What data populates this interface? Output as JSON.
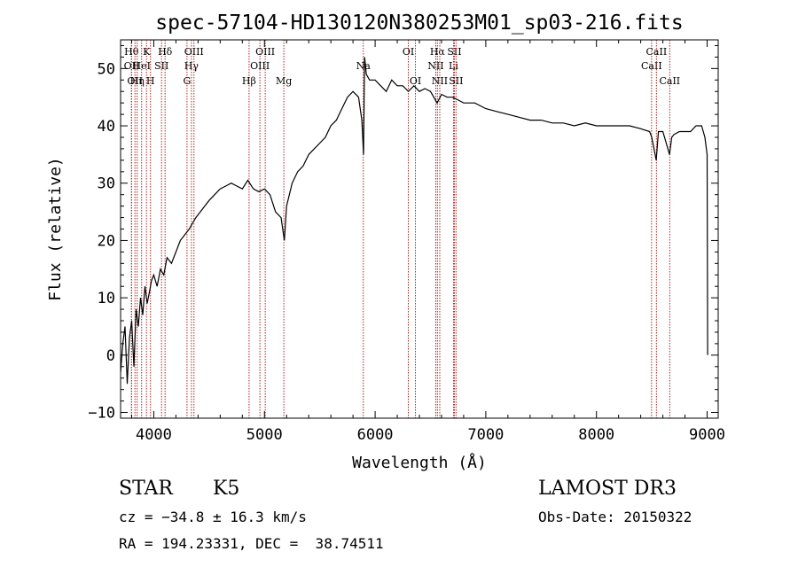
{
  "chart_data": {
    "type": "line",
    "title": "spec-57104-HD130120N380253M01_sp03-216.fits",
    "xlabel": "Wavelength (Å)",
    "ylabel": "Flux (relative)",
    "xlim": [
      3700,
      9100
    ],
    "ylim": [
      -11,
      55
    ],
    "xticks": [
      4000,
      5000,
      6000,
      7000,
      8000,
      9000
    ],
    "yticks": [
      -10,
      0,
      10,
      20,
      30,
      40,
      50
    ],
    "tick_labels_x": [
      "4000",
      "5000",
      "6000",
      "7000",
      "8000",
      "9000"
    ],
    "tick_labels_y": [
      "−10",
      "0",
      "10",
      "20",
      "30",
      "40",
      "50"
    ],
    "series": [
      {
        "name": "flux",
        "x": [
          3700,
          3720,
          3740,
          3760,
          3780,
          3800,
          3820,
          3840,
          3860,
          3880,
          3900,
          3920,
          3940,
          3960,
          3980,
          4000,
          4030,
          4060,
          4090,
          4120,
          4160,
          4200,
          4240,
          4280,
          4320,
          4350,
          4380,
          4420,
          4460,
          4500,
          4550,
          4600,
          4650,
          4700,
          4750,
          4800,
          4850,
          4900,
          4950,
          5000,
          5050,
          5100,
          5150,
          5180,
          5200,
          5250,
          5300,
          5350,
          5400,
          5450,
          5500,
          5550,
          5600,
          5650,
          5700,
          5750,
          5800,
          5850,
          5880,
          5895,
          5905,
          5920,
          5950,
          6000,
          6050,
          6100,
          6150,
          6200,
          6250,
          6300,
          6350,
          6400,
          6450,
          6500,
          6560,
          6600,
          6650,
          6700,
          6750,
          6800,
          6900,
          7000,
          7100,
          7200,
          7300,
          7400,
          7500,
          7600,
          7700,
          7800,
          7900,
          8000,
          8100,
          8200,
          8300,
          8400,
          8480,
          8500,
          8540,
          8560,
          8600,
          8660,
          8680,
          8700,
          8750,
          8800,
          8850,
          8900,
          8950,
          8980,
          9000,
          9005
        ],
        "y": [
          -3,
          2,
          5,
          -5,
          3,
          6,
          -2,
          8,
          5,
          10,
          7,
          12,
          9,
          11,
          13,
          14,
          12,
          15,
          14,
          17,
          16,
          18,
          20,
          21,
          22,
          23,
          24,
          25,
          26,
          27,
          28,
          29,
          29.5,
          30,
          29.5,
          29,
          30.5,
          29,
          28.5,
          29,
          28,
          25,
          24,
          20,
          26,
          30,
          32,
          33,
          35,
          36,
          37,
          38,
          40,
          41,
          43,
          45,
          46,
          45,
          41,
          35,
          52,
          49,
          48,
          48,
          47,
          46,
          48,
          47,
          47,
          46,
          47,
          46,
          46.5,
          46,
          44,
          45.5,
          45,
          45,
          44.5,
          44,
          44,
          43,
          42.5,
          42,
          41.5,
          41,
          41,
          40.5,
          40.5,
          40,
          40.5,
          40,
          40,
          40,
          40,
          39.5,
          39,
          38,
          34,
          39,
          39,
          35,
          38,
          38.5,
          39,
          39,
          39,
          40,
          40,
          38,
          35,
          0
        ]
      }
    ],
    "lines": [
      {
        "wl": 3798,
        "label": "Hθ",
        "row": 1
      },
      {
        "wl": 3800,
        "label": "OII",
        "row": 2
      },
      {
        "wl": 3830,
        "label": "OII",
        "row": 3
      },
      {
        "wl": 3850,
        "label": "Hη",
        "row": 3
      },
      {
        "wl": 3890,
        "label": "HeI",
        "row": 2
      },
      {
        "wl": 3934,
        "label": "K",
        "row": 1
      },
      {
        "wl": 3970,
        "label": "H",
        "row": 3
      },
      {
        "wl": 4070,
        "label": "SII",
        "row": 2
      },
      {
        "wl": 4102,
        "label": "Hδ",
        "row": 1
      },
      {
        "wl": 4300,
        "label": "G",
        "row": 3
      },
      {
        "wl": 4340,
        "label": "Hγ",
        "row": 2
      },
      {
        "wl": 4363,
        "label": "OIII",
        "row": 1
      },
      {
        "wl": 4861,
        "label": "Hβ",
        "row": 3
      },
      {
        "wl": 4959,
        "label": "OIII",
        "row": 2
      },
      {
        "wl": 5007,
        "label": "OIII",
        "row": 1
      },
      {
        "wl": 5175,
        "label": "Mg",
        "row": 3
      },
      {
        "wl": 5893,
        "label": "Na",
        "row": 2
      },
      {
        "wl": 6300,
        "label": "OI",
        "row": 1
      },
      {
        "wl": 6364,
        "label": "OI",
        "row": 3
      },
      {
        "wl": 6548,
        "label": "NII",
        "row": 2
      },
      {
        "wl": 6563,
        "label": "Hα",
        "row": 1
      },
      {
        "wl": 6584,
        "label": "NII",
        "row": 3
      },
      {
        "wl": 6708,
        "label": "Li",
        "row": 2
      },
      {
        "wl": 6716,
        "label": "SII",
        "row": 1
      },
      {
        "wl": 6731,
        "label": "SII",
        "row": 3
      },
      {
        "wl": 8498,
        "label": "CaII",
        "row": 2
      },
      {
        "wl": 8542,
        "label": "CaII",
        "row": 1
      },
      {
        "wl": 8662,
        "label": "CaII",
        "row": 3
      }
    ],
    "line_color": "#b22222"
  },
  "info": {
    "object_class": "STAR",
    "subclass": "K5",
    "survey": "LAMOST DR3",
    "cz": "cz = −34.8 ± 16.3 km/s",
    "obs_date": "Obs-Date: 20150322",
    "coords": "RA = 194.23331, DEC =  38.74511"
  }
}
